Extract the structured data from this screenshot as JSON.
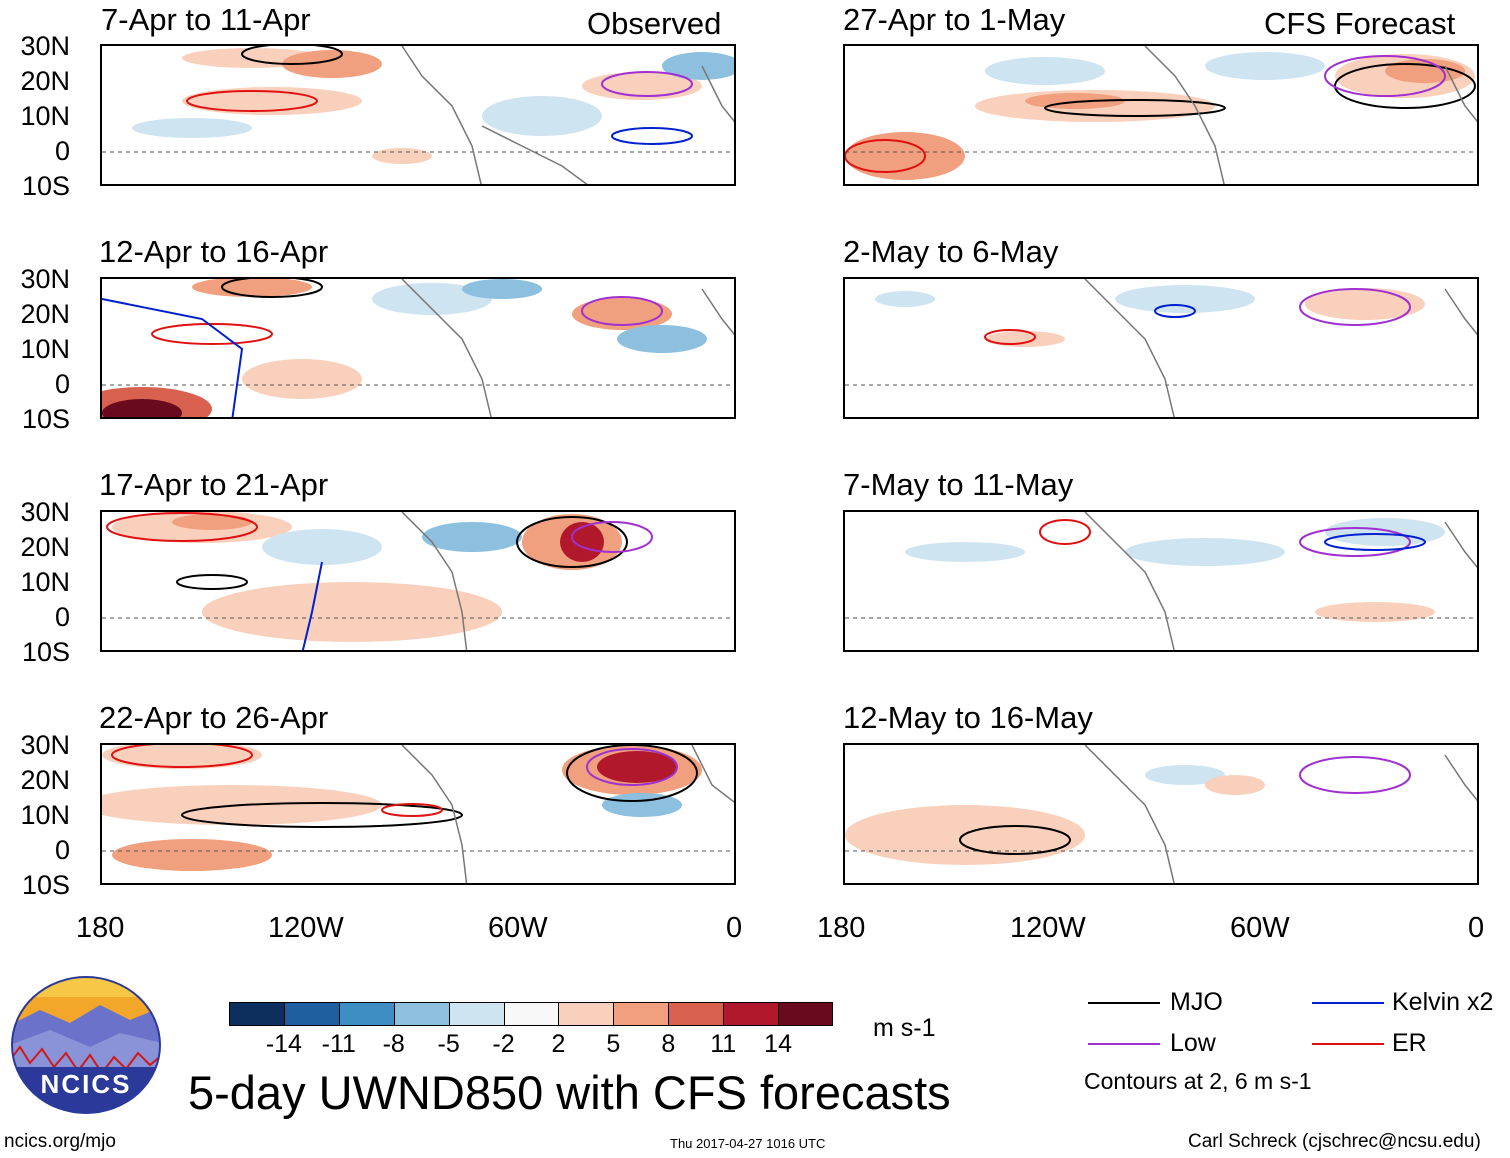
{
  "headers": {
    "left": "Observed",
    "right": "CFS Forecast"
  },
  "panels_left": [
    {
      "title": "7-Apr to 11-Apr"
    },
    {
      "title": "12-Apr to 16-Apr"
    },
    {
      "title": "17-Apr to 21-Apr"
    },
    {
      "title": "22-Apr to 26-Apr"
    }
  ],
  "panels_right": [
    {
      "title": "27-Apr to 1-May"
    },
    {
      "title": "2-May to 6-May"
    },
    {
      "title": "7-May to 11-May"
    },
    {
      "title": "12-May to 16-May"
    }
  ],
  "lat_labels": [
    "30N",
    "20N",
    "10N",
    "0",
    "10S"
  ],
  "lon_labels": [
    "180",
    "120W",
    "60W",
    "0"
  ],
  "colorbar": {
    "ticks": [
      "-14",
      "-11",
      "-8",
      "-5",
      "-2",
      "2",
      "5",
      "8",
      "11",
      "14"
    ],
    "colors": [
      "#0d2f5e",
      "#1f5f9f",
      "#3e8dc3",
      "#8cc0de",
      "#cfe4f1",
      "#f8f8f8",
      "#f9d0bc",
      "#f0a07e",
      "#d8604f",
      "#b2182b",
      "#6a0a1f"
    ],
    "units": "m s-1"
  },
  "legend": {
    "mjo": "MJO",
    "kelvin": "Kelvin x2",
    "low": "Low",
    "er": "ER",
    "contours": "Contours at 2, 6 m s-1",
    "colors": {
      "mjo": "#000000",
      "kelvin": "#0020d0",
      "low": "#a030d0",
      "er": "#e01010"
    }
  },
  "main_title": "5-day UWND850 with CFS forecasts",
  "logo_text": "NCICS",
  "footer": {
    "url": "ncics.org/mjo",
    "timestamp": "Thu 2017-04-27 1016 UTC",
    "author": "Carl Schreck (cjschrec@ncsu.edu)"
  }
}
